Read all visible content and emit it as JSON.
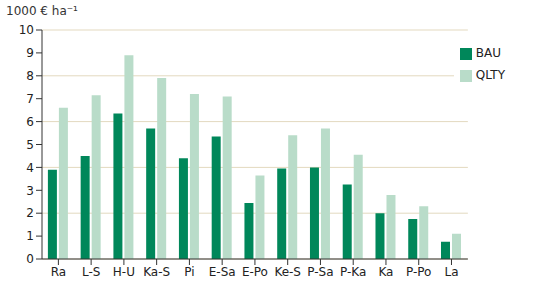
{
  "chart_data": {
    "type": "bar",
    "y_label": "1000 € ha⁻¹",
    "categories": [
      "Ra",
      "L-S",
      "H-U",
      "Ka-S",
      "Pi",
      "E-Sa",
      "E-Po",
      "Ke-S",
      "P-Sa",
      "P-Ka",
      "Ka",
      "P-Po",
      "La"
    ],
    "series": [
      {
        "name": "BAU",
        "color": "#00875a",
        "values": [
          3.9,
          4.5,
          6.35,
          5.7,
          4.4,
          5.35,
          2.45,
          3.95,
          4.0,
          3.25,
          2.0,
          1.75,
          0.75
        ]
      },
      {
        "name": "QLTY",
        "color": "#b9dcc9",
        "values": [
          6.6,
          7.15,
          8.9,
          7.9,
          7.2,
          7.1,
          3.65,
          5.4,
          5.7,
          4.55,
          2.8,
          2.3,
          1.1
        ]
      }
    ],
    "ylim": [
      0,
      10
    ],
    "yticks": [
      0,
      1,
      2,
      3,
      4,
      5,
      6,
      7,
      8,
      9,
      10
    ],
    "grid": true,
    "legend": "upper right"
  }
}
